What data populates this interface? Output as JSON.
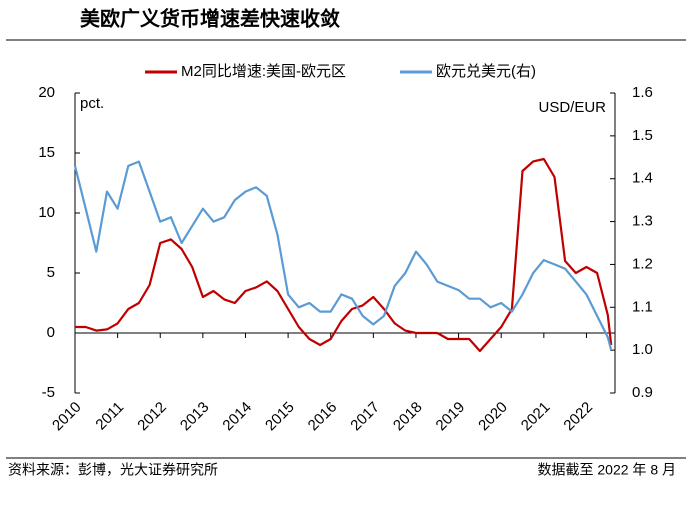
{
  "chart_data": {
    "type": "line",
    "title": "美欧广义货币增速差快速收敛",
    "source": "资料来源：彭博，光大证券研究所",
    "note": "数据截至 2022 年 8 月",
    "ylabel": "pct.",
    "y2label": "USD/EUR",
    "x": [
      2010,
      2010.25,
      2010.5,
      2010.75,
      2011,
      2011.25,
      2011.5,
      2011.75,
      2012,
      2012.25,
      2012.5,
      2012.75,
      2013,
      2013.25,
      2013.5,
      2013.75,
      2014,
      2014.25,
      2014.5,
      2014.75,
      2015,
      2015.25,
      2015.5,
      2015.75,
      2016,
      2016.25,
      2016.5,
      2016.75,
      2017,
      2017.25,
      2017.5,
      2017.75,
      2018,
      2018.25,
      2018.5,
      2018.75,
      2019,
      2019.25,
      2019.5,
      2019.75,
      2020,
      2020.25,
      2020.5,
      2020.75,
      2021,
      2021.25,
      2021.5,
      2021.75,
      2022,
      2022.25,
      2022.5,
      2022.58
    ],
    "series": [
      {
        "name": "M2同比增速:美国-欧元区",
        "color": "#c00000",
        "values": [
          0.5,
          0.5,
          0.2,
          0.3,
          0.8,
          2,
          2.5,
          4,
          7.5,
          7.8,
          7,
          5.5,
          3,
          3.5,
          2.8,
          2.5,
          3.5,
          3.8,
          4.3,
          3.5,
          2,
          0.5,
          -0.5,
          -1,
          -0.5,
          1,
          2,
          2.3,
          3,
          2,
          0.8,
          0.2,
          0,
          0,
          0,
          -0.5,
          -0.5,
          -0.5,
          -1.5,
          -0.5,
          0.5,
          2,
          13.5,
          14.3,
          14.5,
          13,
          6,
          5,
          5.5,
          5,
          1.5,
          -1
        ]
      },
      {
        "name": "欧元兑美元(右)",
        "color": "#5b9bd5",
        "axis": "y2",
        "values": [
          1.43,
          1.33,
          1.23,
          1.37,
          1.33,
          1.43,
          1.44,
          1.37,
          1.3,
          1.31,
          1.25,
          1.29,
          1.33,
          1.3,
          1.31,
          1.35,
          1.37,
          1.38,
          1.36,
          1.27,
          1.13,
          1.1,
          1.11,
          1.09,
          1.09,
          1.13,
          1.12,
          1.08,
          1.06,
          1.08,
          1.15,
          1.18,
          1.23,
          1.2,
          1.16,
          1.15,
          1.14,
          1.12,
          1.12,
          1.1,
          1.11,
          1.09,
          1.13,
          1.18,
          1.21,
          1.2,
          1.19,
          1.16,
          1.13,
          1.08,
          1.03,
          1.0
        ]
      }
    ],
    "xlim": [
      2010,
      2022.67
    ],
    "xticks": [
      2010,
      2011,
      2012,
      2013,
      2014,
      2015,
      2016,
      2017,
      2018,
      2019,
      2020,
      2021,
      2022
    ],
    "ylim": [
      -5,
      20
    ],
    "yticks": [
      -5,
      0,
      5,
      10,
      15,
      20
    ],
    "y2lim": [
      0.9,
      1.6
    ],
    "y2ticks": [
      {
        "value": 0.9,
        "label": "0.9"
      },
      {
        "value": 1,
        "label": "1.0"
      },
      1.1,
      1.2,
      1.3,
      1.4,
      1.5,
      1.6
    ],
    "legend": "top"
  }
}
